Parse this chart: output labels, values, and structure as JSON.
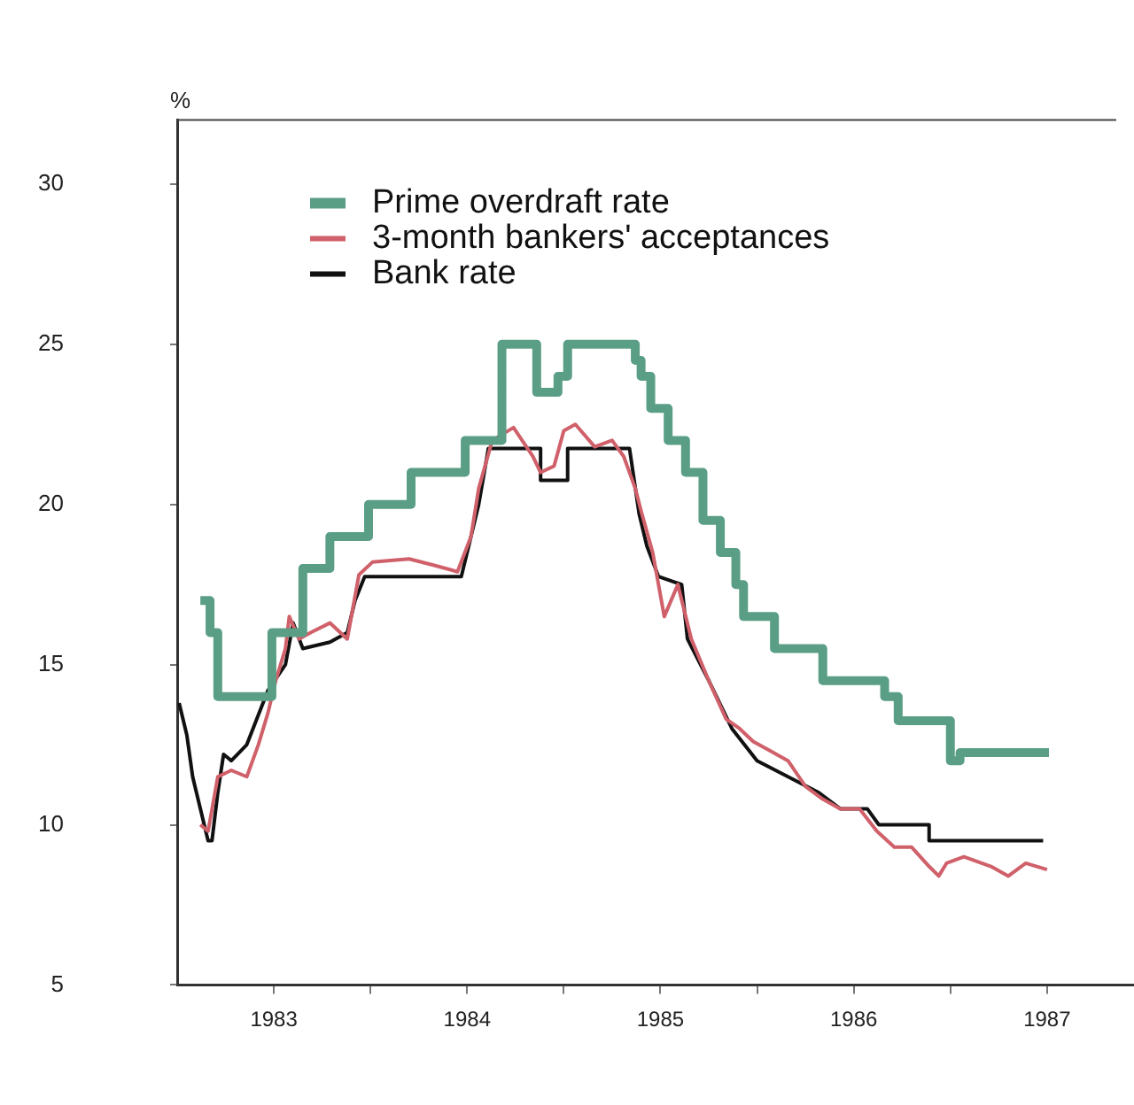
{
  "chart_data": {
    "type": "line",
    "ylabel": "%",
    "legend": "top left",
    "grid": false,
    "marker": "none",
    "line_style": "solid",
    "xlim": [
      1983,
      1987.95
    ],
    "ylim": [
      5,
      32
    ],
    "yticks": [
      5,
      10,
      15,
      20,
      25,
      30
    ],
    "xticks": [
      {
        "value": 1983.5,
        "label": "1983"
      },
      {
        "value": 1984,
        "label": null
      },
      {
        "value": 1984.5,
        "label": "1984"
      },
      {
        "value": 1985,
        "label": null
      },
      {
        "value": 1985.5,
        "label": "1985"
      },
      {
        "value": 1986,
        "label": null
      },
      {
        "value": 1986.5,
        "label": "1986"
      },
      {
        "value": 1987,
        "label": null
      },
      {
        "value": 1987.5,
        "label": "1987"
      }
    ],
    "series": [
      {
        "name": "Prime overdraft rate",
        "color": "#5a9e86",
        "x": [
          1983.12,
          1983.17,
          1983.17,
          1983.21,
          1983.21,
          1983.49,
          1983.49,
          1983.65,
          1983.65,
          1983.79,
          1983.79,
          1983.99,
          1983.99,
          1984.21,
          1984.21,
          1984.49,
          1984.49,
          1984.68,
          1984.68,
          1984.86,
          1984.86,
          1984.97,
          1984.97,
          1985.02,
          1985.02,
          1985.37,
          1985.37,
          1985.4,
          1985.4,
          1985.45,
          1985.45,
          1985.54,
          1985.54,
          1985.63,
          1985.63,
          1985.72,
          1985.72,
          1985.81,
          1985.81,
          1985.89,
          1985.89,
          1985.93,
          1985.93,
          1986.09,
          1986.09,
          1986.34,
          1986.34,
          1986.66,
          1986.66,
          1986.73,
          1986.73,
          1987.0,
          1987.0,
          1987.05,
          1987.05,
          1987.51
        ],
        "values": [
          17,
          17,
          16,
          16,
          14,
          14,
          16,
          16,
          18,
          18,
          19,
          19,
          20,
          20,
          21,
          21,
          22,
          22,
          25,
          25,
          23.5,
          23.5,
          24,
          24,
          25,
          25,
          24.5,
          24.5,
          24,
          24,
          23,
          23,
          22,
          22,
          21,
          21,
          19.5,
          19.5,
          18.5,
          18.5,
          17.5,
          17.5,
          16.5,
          16.5,
          15.5,
          15.5,
          14.5,
          14.5,
          14,
          14,
          13.25,
          13.25,
          12,
          12,
          12.25,
          12.25
        ]
      },
      {
        "name": "3-month bankers' acceptances",
        "color": "#d0606a",
        "x": [
          1983.12,
          1983.16,
          1983.21,
          1983.28,
          1983.36,
          1983.42,
          1983.47,
          1983.51,
          1983.56,
          1983.58,
          1983.63,
          1983.69,
          1983.79,
          1983.88,
          1983.94,
          1984.01,
          1984.2,
          1984.33,
          1984.45,
          1984.52,
          1984.56,
          1984.63,
          1984.74,
          1984.84,
          1984.88,
          1984.95,
          1985.0,
          1985.06,
          1985.16,
          1985.25,
          1985.31,
          1985.37,
          1985.4,
          1985.46,
          1985.49,
          1985.52,
          1985.59,
          1985.66,
          1985.75,
          1985.84,
          1985.91,
          1985.98,
          1986.07,
          1986.16,
          1986.25,
          1986.34,
          1986.43,
          1986.53,
          1986.62,
          1986.71,
          1986.8,
          1986.89,
          1986.94,
          1986.98,
          1987.07,
          1987.21,
          1987.3,
          1987.39,
          1987.5
        ],
        "values": [
          10,
          9.8,
          11.5,
          11.7,
          11.5,
          12.5,
          13.5,
          14.5,
          15.5,
          16.5,
          15.8,
          16,
          16.3,
          15.8,
          17.8,
          18.2,
          18.3,
          18.1,
          17.9,
          19,
          20.5,
          22,
          22.4,
          21.5,
          21,
          21.2,
          22.3,
          22.5,
          21.8,
          22,
          21.5,
          20.5,
          19.8,
          18.5,
          17.5,
          16.5,
          17.5,
          15.8,
          14.5,
          13.3,
          13,
          12.6,
          12.3,
          12,
          11.2,
          10.8,
          10.5,
          10.5,
          9.8,
          9.3,
          9.3,
          8.7,
          8.4,
          8.8,
          9,
          8.7,
          8.4,
          8.8,
          8.6
        ]
      },
      {
        "name": "Bank rate",
        "color": "#111111",
        "x": [
          1983.01,
          1983.05,
          1983.08,
          1983.12,
          1983.16,
          1983.18,
          1983.21,
          1983.24,
          1983.28,
          1983.36,
          1983.47,
          1983.56,
          1983.6,
          1983.65,
          1983.79,
          1983.88,
          1983.92,
          1983.97,
          1984.47,
          1984.5,
          1984.56,
          1984.61,
          1984.88,
          1984.88,
          1985.02,
          1985.02,
          1985.34,
          1985.39,
          1985.43,
          1985.49,
          1985.61,
          1985.64,
          1985.75,
          1985.87,
          1986.0,
          1986.32,
          1986.43,
          1986.57,
          1986.63,
          1986.89,
          1986.89,
          1987.48
        ],
        "values": [
          13.8,
          12.8,
          11.5,
          10.5,
          9.5,
          9.5,
          11,
          12.2,
          12,
          12.5,
          14.2,
          15,
          16.3,
          15.5,
          15.7,
          16,
          17,
          17.75,
          17.75,
          18.5,
          20,
          21.75,
          21.75,
          20.75,
          20.75,
          21.75,
          21.75,
          19.7,
          18.7,
          17.75,
          17.5,
          15.8,
          14.5,
          13,
          12,
          11,
          10.5,
          10.5,
          10,
          10,
          9.5,
          9.5
        ]
      }
    ]
  }
}
